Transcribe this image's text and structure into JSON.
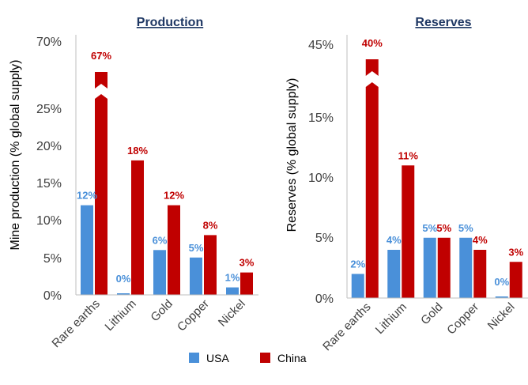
{
  "colors": {
    "usa": "#4a90d9",
    "china": "#c00000",
    "axis": "#bfbfbf",
    "text": "#404040",
    "title": "#1f3864"
  },
  "chart_data": [
    {
      "type": "bar",
      "title": "Production",
      "ylabel": "Mine production (% global supply)",
      "axis_break": {
        "from": 25,
        "to": 70,
        "top_tick": 70
      },
      "yticks": [
        "0%",
        "5%",
        "10%",
        "15%",
        "20%",
        "25%",
        "70%"
      ],
      "categories": [
        "Rare earths",
        "Lithium",
        "Gold",
        "Copper",
        "Nickel"
      ],
      "series": [
        {
          "name": "USA",
          "values": [
            12,
            0,
            6,
            5,
            1
          ],
          "labels": [
            "12%",
            "0%",
            "6%",
            "5%",
            "1%"
          ]
        },
        {
          "name": "China",
          "values": [
            67,
            18,
            12,
            8,
            3
          ],
          "labels": [
            "67%",
            "18%",
            "12%",
            "8%",
            "3%"
          ]
        }
      ]
    },
    {
      "type": "bar",
      "title": "Reserves",
      "ylabel": "Reserves (% global supply)",
      "axis_break": {
        "from": 15,
        "to": 45,
        "top_tick": 45
      },
      "yticks": [
        "0%",
        "5%",
        "10%",
        "15%",
        "45%"
      ],
      "categories": [
        "Rare earths",
        "Lithium",
        "Gold",
        "Copper",
        "Nickel"
      ],
      "series": [
        {
          "name": "USA",
          "values": [
            2,
            4,
            5,
            5,
            0
          ],
          "labels": [
            "2%",
            "4%",
            "5%",
            "5%",
            "0%"
          ]
        },
        {
          "name": "China",
          "values": [
            40,
            11,
            5,
            4,
            3
          ],
          "labels": [
            "40%",
            "11%",
            "5%",
            "4%",
            "3%"
          ]
        }
      ]
    }
  ],
  "legend": [
    {
      "key": "usa",
      "label": "USA"
    },
    {
      "key": "china",
      "label": "China"
    }
  ]
}
